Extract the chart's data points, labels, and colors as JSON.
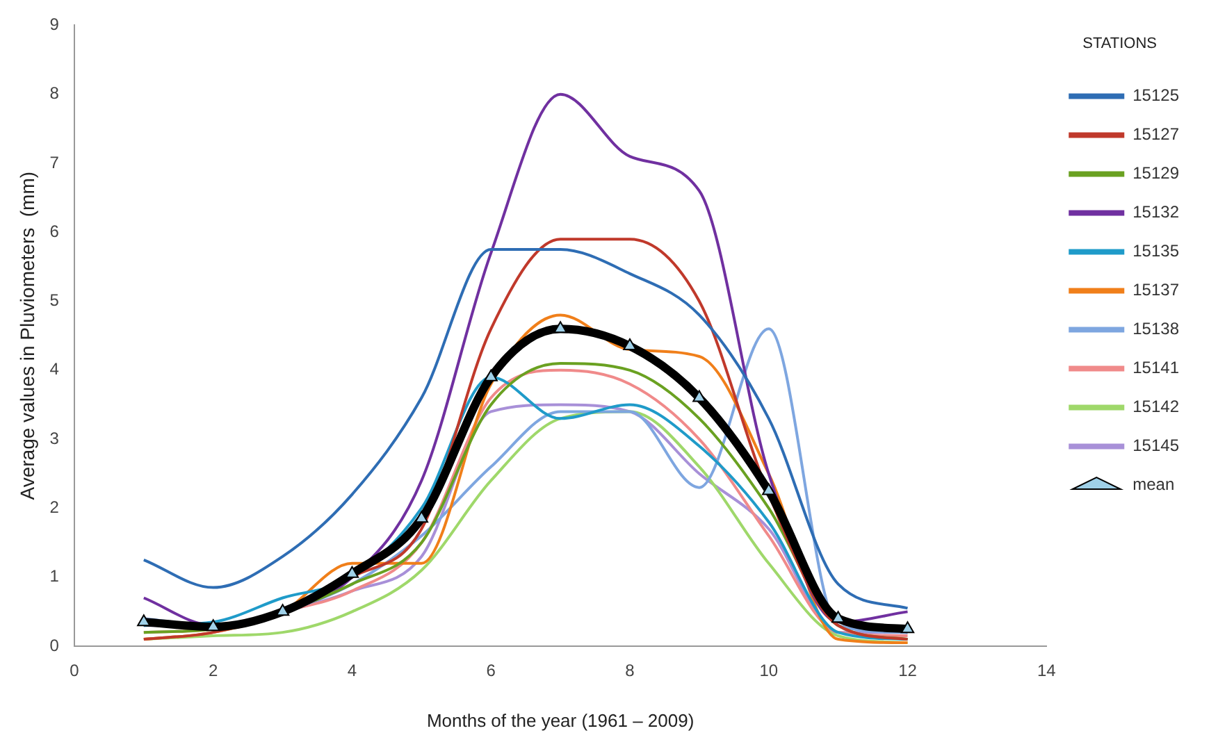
{
  "chart_data": {
    "type": "line",
    "xlabel": "Months of the year (1961 – 2009)",
    "ylabel": "Average values in Pluviometers  (mm)",
    "legend_title": "STATIONS",
    "legend": "right",
    "grid": false,
    "x": [
      1,
      2,
      3,
      4,
      5,
      6,
      7,
      8,
      9,
      10,
      11,
      12
    ],
    "xlim": [
      0,
      14
    ],
    "xticks": [
      0,
      2,
      4,
      6,
      8,
      10,
      12,
      14
    ],
    "ylim": [
      0,
      9
    ],
    "yticks": [
      0,
      1,
      2,
      3,
      4,
      5,
      6,
      7,
      8,
      9
    ],
    "series": [
      {
        "name": "15125",
        "color": "#2e6db4",
        "marker": "none",
        "values": [
          1.25,
          0.85,
          1.3,
          2.2,
          3.6,
          5.75,
          5.75,
          5.4,
          4.8,
          3.3,
          0.9,
          0.55
        ]
      },
      {
        "name": "15127",
        "color": "#c0392b",
        "marker": "none",
        "values": [
          0.1,
          0.2,
          0.5,
          1.0,
          1.7,
          4.6,
          5.9,
          5.9,
          5.0,
          2.2,
          0.3,
          0.1
        ]
      },
      {
        "name": "15129",
        "color": "#6aa121",
        "marker": "none",
        "values": [
          0.2,
          0.25,
          0.5,
          0.9,
          1.5,
          3.5,
          4.1,
          4.0,
          3.3,
          2.0,
          0.3,
          0.1
        ]
      },
      {
        "name": "15132",
        "color": "#7030a0",
        "marker": "none",
        "values": [
          0.7,
          0.3,
          0.5,
          1.0,
          2.4,
          5.7,
          8.0,
          7.1,
          6.6,
          2.5,
          0.35,
          0.5
        ]
      },
      {
        "name": "15135",
        "color": "#1f9bc9",
        "marker": "none",
        "values": [
          0.3,
          0.35,
          0.7,
          1.0,
          2.0,
          3.9,
          3.3,
          3.5,
          2.9,
          1.8,
          0.2,
          0.1
        ]
      },
      {
        "name": "15137",
        "color": "#f07f1a",
        "marker": "none",
        "values": [
          0.1,
          0.2,
          0.5,
          1.2,
          1.2,
          3.8,
          4.8,
          4.3,
          4.2,
          2.5,
          0.1,
          0.05
        ]
      },
      {
        "name": "15138",
        "color": "#7ea6e0",
        "marker": "none",
        "values": [
          0.4,
          0.3,
          0.5,
          0.9,
          1.6,
          2.6,
          3.4,
          3.4,
          2.3,
          4.6,
          0.3,
          0.2
        ]
      },
      {
        "name": "15141",
        "color": "#f08a8a",
        "marker": "none",
        "values": [
          0.2,
          0.25,
          0.5,
          0.8,
          1.5,
          3.6,
          4.0,
          3.8,
          3.0,
          1.6,
          0.2,
          0.15
        ]
      },
      {
        "name": "15142",
        "color": "#9fd86a",
        "marker": "none",
        "values": [
          0.1,
          0.15,
          0.2,
          0.5,
          1.1,
          2.4,
          3.3,
          3.4,
          2.6,
          1.2,
          0.15,
          0.05
        ]
      },
      {
        "name": "15145",
        "color": "#a890d8",
        "marker": "none",
        "values": [
          0.3,
          0.3,
          0.5,
          0.8,
          1.3,
          3.4,
          3.5,
          3.4,
          2.5,
          1.7,
          0.2,
          0.2
        ]
      },
      {
        "name": "mean",
        "color": "#000000",
        "marker": "triangle",
        "values": [
          0.35,
          0.28,
          0.5,
          1.05,
          1.85,
          3.9,
          4.6,
          4.35,
          3.6,
          2.25,
          0.4,
          0.25
        ]
      }
    ]
  }
}
